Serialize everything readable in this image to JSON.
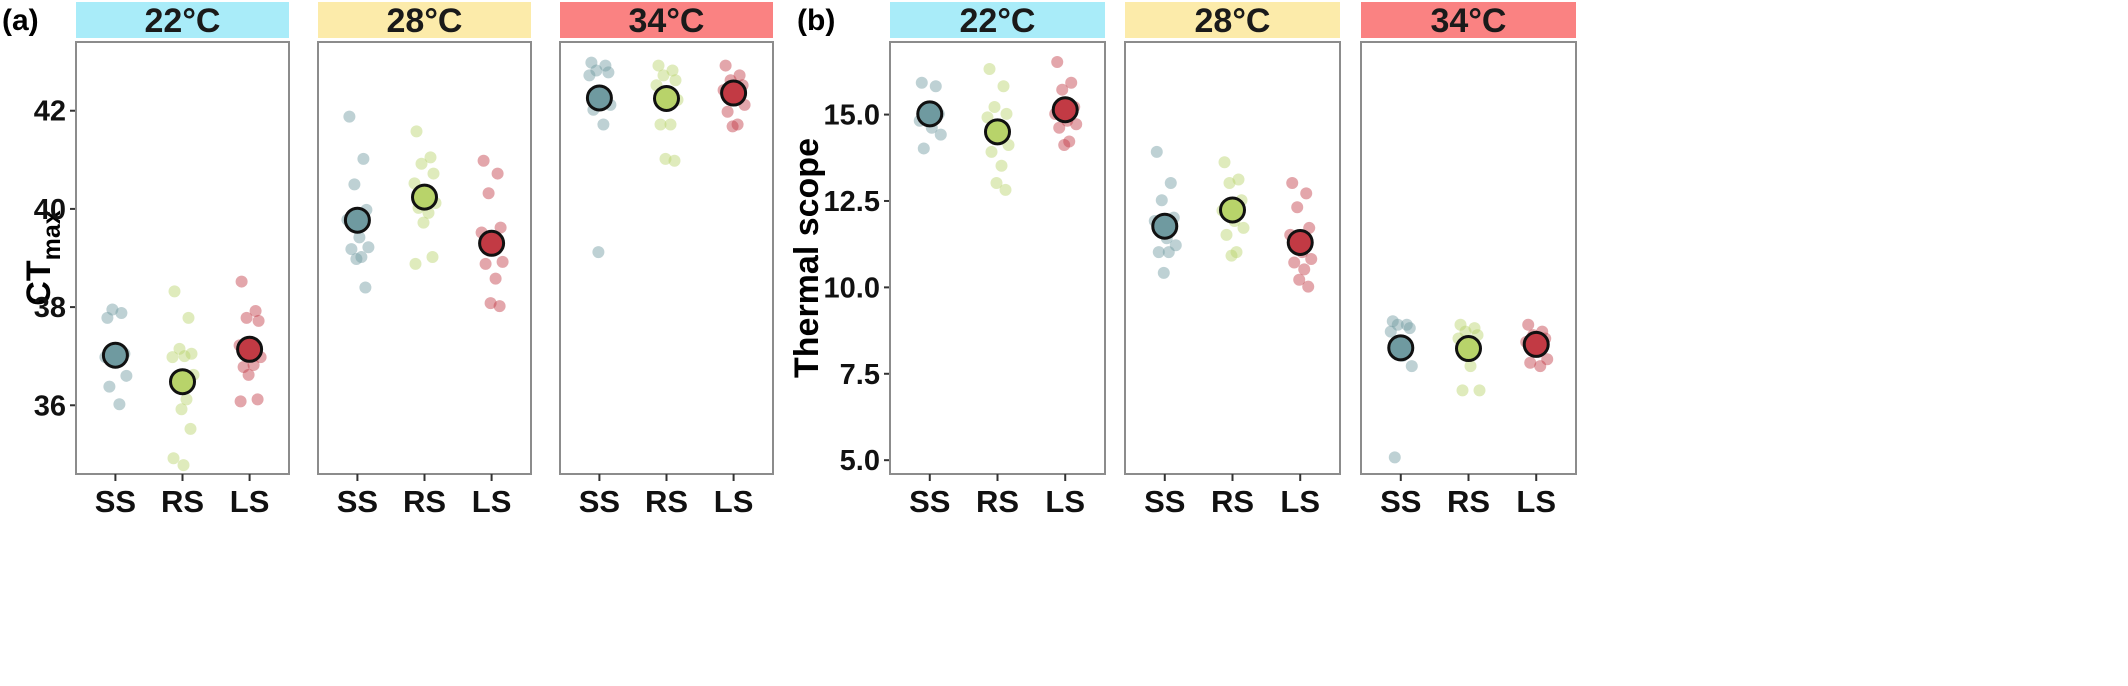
{
  "categories": [
    "SS",
    "RS",
    "LS"
  ],
  "colors": {
    "SS": "#6f9aa0",
    "RS": "#b8d36a",
    "LS": "#c23a44",
    "strip_22": "#a9ecf9",
    "strip_28": "#fcebaa",
    "strip_34": "#fa8282"
  },
  "chart_data": [
    {
      "type": "scatter",
      "panel_label": "(a)",
      "ylabel": "CT",
      "ylabel_sub": "max",
      "ylim": [
        34.6,
        43.4
      ],
      "yticks": [
        36,
        38,
        40,
        42
      ],
      "ytick_labels": [
        "36",
        "38",
        "40",
        "42"
      ],
      "facets": [
        {
          "strip": "22°C",
          "strip_color": "strip_22",
          "series": [
            {
              "name": "SS",
              "mean": 37.02,
              "points": [
                37.78,
                37.88,
                37.95,
                37.05,
                36.98,
                37.1,
                36.6,
                36.38,
                36.02
              ]
            },
            {
              "name": "RS",
              "mean": 36.48,
              "points": [
                38.32,
                37.78,
                37.15,
                37.05,
                36.98,
                37.0,
                36.62,
                36.42,
                36.12,
                35.92,
                35.52,
                34.92,
                34.78
              ]
            },
            {
              "name": "LS",
              "mean": 37.14,
              "points": [
                38.52,
                37.92,
                37.78,
                37.72,
                37.22,
                37.12,
                36.98,
                36.78,
                36.82,
                36.62,
                36.12,
                36.08
              ]
            }
          ]
        },
        {
          "strip": "28°C",
          "strip_color": "strip_28",
          "series": [
            {
              "name": "SS",
              "mean": 39.77,
              "points": [
                41.88,
                41.02,
                40.5,
                39.98,
                39.78,
                39.42,
                39.22,
                39.18,
                39.02,
                38.98,
                38.4
              ]
            },
            {
              "name": "RS",
              "mean": 40.24,
              "points": [
                41.58,
                41.05,
                40.92,
                40.72,
                40.52,
                40.22,
                40.12,
                40.02,
                39.92,
                39.72,
                39.02,
                38.88
              ]
            },
            {
              "name": "LS",
              "mean": 39.3,
              "points": [
                40.98,
                40.72,
                40.32,
                39.62,
                39.52,
                39.32,
                38.92,
                38.88,
                38.58,
                38.08,
                38.02
              ]
            }
          ]
        },
        {
          "strip": "34°C",
          "strip_color": "strip_34",
          "series": [
            {
              "name": "SS",
              "mean": 42.26,
              "points": [
                42.98,
                42.92,
                42.82,
                42.78,
                42.72,
                42.28,
                42.12,
                42.02,
                41.72,
                39.12
              ]
            },
            {
              "name": "RS",
              "mean": 42.25,
              "points": [
                42.92,
                42.82,
                42.72,
                42.62,
                42.52,
                42.32,
                42.22,
                41.72,
                41.72,
                41.02,
                40.98
              ]
            },
            {
              "name": "LS",
              "mean": 42.36,
              "points": [
                42.92,
                42.72,
                42.62,
                42.52,
                42.42,
                42.32,
                42.12,
                41.98,
                41.72,
                41.68
              ]
            }
          ]
        }
      ]
    },
    {
      "type": "scatter",
      "panel_label": "(b)",
      "ylabel": "Thermal scope",
      "ylabel_sub": "",
      "ylim": [
        4.6,
        17.1
      ],
      "yticks": [
        5.0,
        7.5,
        10.0,
        12.5,
        15.0
      ],
      "ytick_labels": [
        "5.0",
        "7.5",
        "10.0",
        "12.5",
        "15.0"
      ],
      "facets": [
        {
          "strip": "22°C",
          "strip_color": "strip_22",
          "series": [
            {
              "name": "SS",
              "mean": 15.02,
              "points": [
                15.92,
                15.82,
                15.22,
                15.02,
                14.82,
                14.62,
                14.42,
                14.02
              ]
            },
            {
              "name": "RS",
              "mean": 14.5,
              "points": [
                16.32,
                15.82,
                15.22,
                15.02,
                14.92,
                14.42,
                14.12,
                13.92,
                13.52,
                13.02,
                12.82
              ]
            },
            {
              "name": "LS",
              "mean": 15.14,
              "points": [
                16.52,
                15.92,
                15.72,
                15.22,
                15.02,
                14.82,
                14.72,
                14.62,
                14.22,
                14.12
              ]
            }
          ]
        },
        {
          "strip": "28°C",
          "strip_color": "strip_28",
          "series": [
            {
              "name": "SS",
              "mean": 11.77,
              "points": [
                13.92,
                13.02,
                12.52,
                12.02,
                11.92,
                11.42,
                11.22,
                11.02,
                11.02,
                10.42
              ]
            },
            {
              "name": "RS",
              "mean": 12.24,
              "points": [
                13.62,
                13.12,
                13.02,
                12.52,
                12.22,
                11.92,
                11.72,
                11.52,
                11.02,
                10.92
              ]
            },
            {
              "name": "LS",
              "mean": 11.3,
              "points": [
                13.02,
                12.72,
                12.32,
                11.72,
                11.52,
                11.02,
                10.82,
                10.72,
                10.52,
                10.22,
                10.02
              ]
            }
          ]
        },
        {
          "strip": "34°C",
          "strip_color": "strip_34",
          "series": [
            {
              "name": "SS",
              "mean": 8.25,
              "points": [
                9.02,
                8.92,
                8.92,
                8.82,
                8.72,
                8.02,
                7.72,
                5.08
              ]
            },
            {
              "name": "RS",
              "mean": 8.23,
              "points": [
                8.92,
                8.82,
                8.72,
                8.62,
                8.52,
                7.72,
                7.02,
                7.02
              ]
            },
            {
              "name": "LS",
              "mean": 8.35,
              "points": [
                8.92,
                8.72,
                8.62,
                8.52,
                8.42,
                8.22,
                7.92,
                7.82,
                7.72
              ]
            }
          ]
        }
      ]
    }
  ]
}
